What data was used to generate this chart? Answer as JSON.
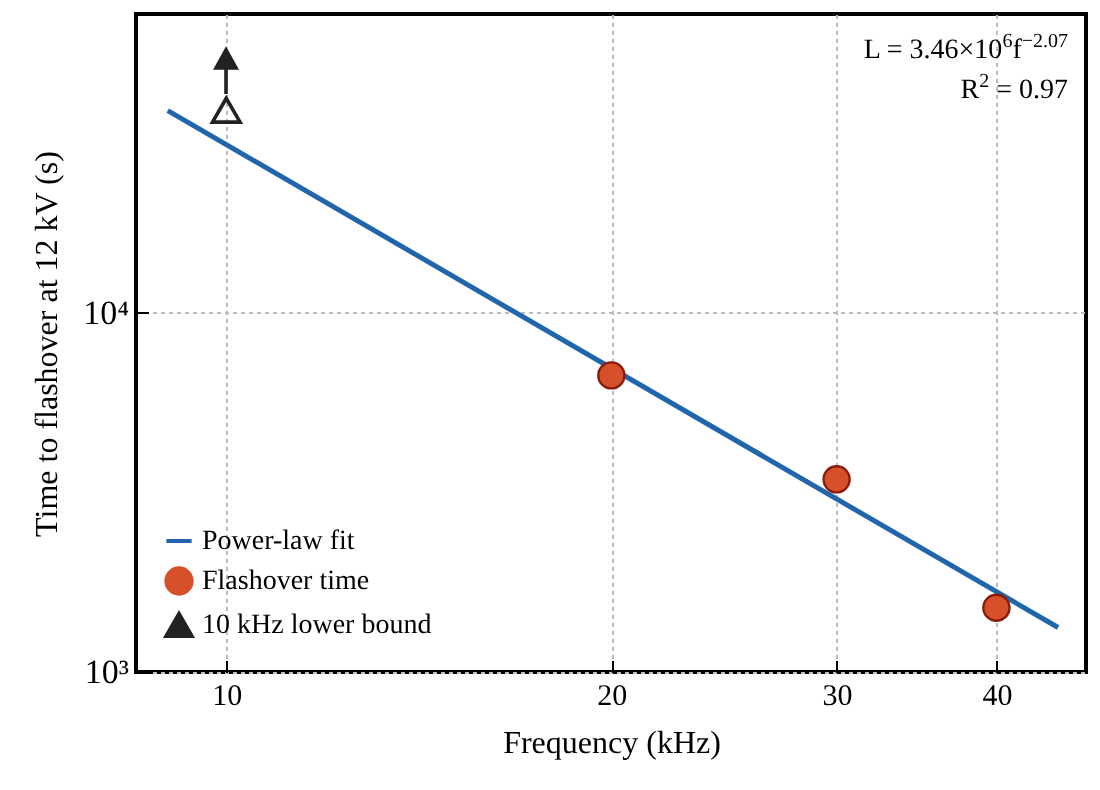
{
  "chart_data": {
    "type": "scatter",
    "xlabel": "Frequency (kHz)",
    "ylabel": "Time to flashover at 12 kV (s)",
    "log": "xy",
    "grid": true,
    "legend": "bottom left",
    "xlim": [
      8.5,
      47
    ],
    "xticks": [
      10,
      20,
      30,
      40
    ],
    "ylim": [
      1000,
      68000
    ],
    "yticks": [
      {
        "value": 1000,
        "label": "10³"
      },
      {
        "value": 10000,
        "label": "10⁴"
      }
    ],
    "annotations": [
      "L = 3.46×10$^{6}$f$^{−2.07}$",
      "R$^{2}$ = 0.97"
    ],
    "series": [
      {
        "name": "Power-law fit",
        "type": "line",
        "color": "#2166ac",
        "x": [
          9,
          44.7
        ],
        "values": [
          36600,
          1330
        ]
      },
      {
        "name": "Flashover time",
        "marker": "circle",
        "color": "#d6502a",
        "x": [
          20,
          30,
          40
        ],
        "values": [
          6700,
          3440,
          1510
        ]
      },
      {
        "name": "10 kHz lower bound",
        "marker": "triangle",
        "color": "#222222",
        "x": [
          10
        ],
        "values": [
          36700
        ]
      }
    ]
  }
}
